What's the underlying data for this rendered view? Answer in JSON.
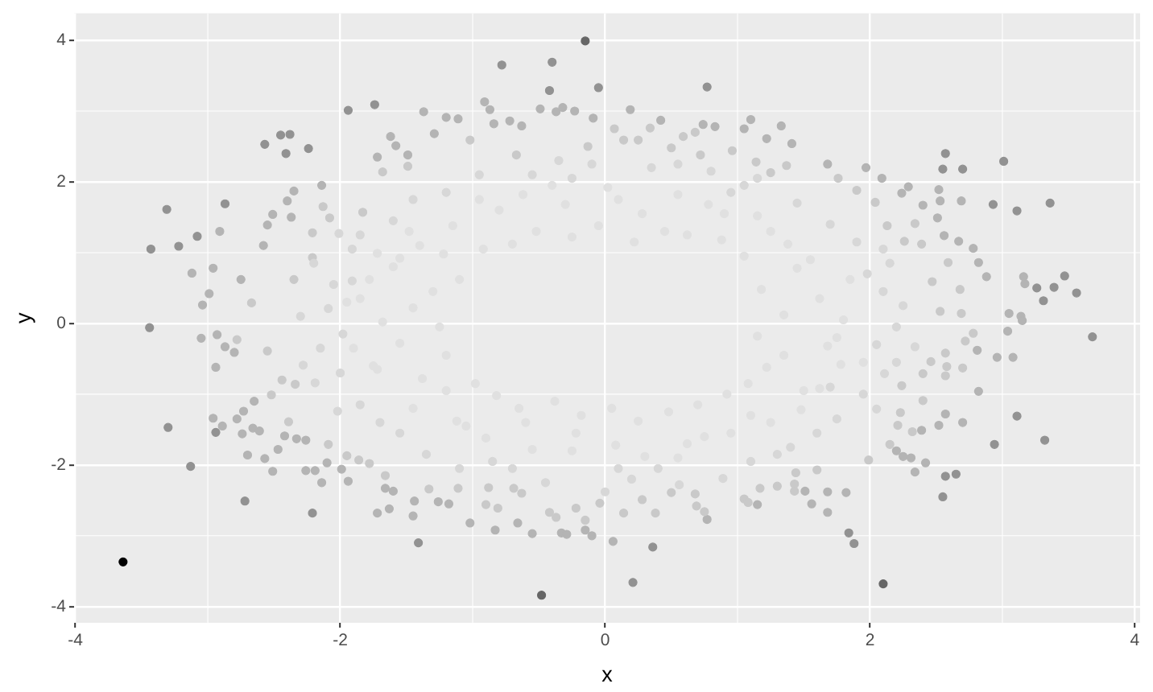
{
  "chart_data": {
    "type": "scatter",
    "xlabel": "x",
    "ylabel": "y",
    "xlim": [
      -4.01,
      4.04
    ],
    "ylim": [
      -4.23,
      4.38
    ],
    "xticks": [
      -4,
      -2,
      0,
      2,
      4
    ],
    "yticks": [
      -4,
      -2,
      0,
      2,
      4
    ],
    "grid": true,
    "marker": "circle",
    "series": [
      {
        "color": "#e0e0e0",
        "x": [
          -1.72,
          -1.4,
          -0.8,
          0.1,
          0.9,
          1.55,
          1.8,
          1.5,
          0.75,
          -0.25,
          -1.05,
          -1.75,
          -1.85,
          -1.2,
          1.25,
          -0.4,
          0.55,
          1.95,
          -1.6,
          1.1,
          -0.6,
          1.35,
          1.75,
          1.62,
          1.18,
          1.85,
          1.45,
          1.05,
          1.38,
          0.88,
          1.15,
          0.62,
          0.78,
          0.45,
          0.55,
          0.22,
          0.28,
          -0.05,
          0.02,
          -0.25,
          -0.3,
          -0.52,
          -0.62,
          -0.7,
          -0.95,
          -0.92,
          -1.15,
          -1.22,
          -1.48,
          -1.1,
          -1.55,
          -1.3,
          -1.78,
          -1.45,
          -1.95,
          -1.25,
          -1.68,
          -1.55,
          -1.9,
          -1.2,
          -1.72,
          -1.38,
          -0.98,
          -1.45,
          -0.82,
          -1.12,
          -0.65,
          -0.9,
          -0.38,
          -0.55,
          -0.18,
          -0.22,
          0.05,
          0.08,
          0.25,
          0.3,
          0.48,
          0.62,
          0.7,
          0.95,
          0.92,
          1.25,
          1.08,
          1.48,
          1.22,
          1.62,
          1.35,
          1.78,
          1.15,
          1.68
        ],
        "values": [
          0.99,
          1.1,
          1.6,
          1.75,
          1.55,
          0.9,
          0.05,
          -0.95,
          -1.6,
          -1.8,
          -1.45,
          -0.6,
          0.35,
          -0.95,
          1.3,
          1.95,
          -1.9,
          -0.55,
          0.8,
          -1.3,
          -1.4,
          0.12,
          -0.2,
          0.35,
          0.48,
          0.62,
          0.78,
          0.95,
          1.12,
          1.18,
          1.52,
          1.25,
          1.68,
          1.3,
          1.82,
          1.15,
          1.55,
          1.38,
          1.92,
          1.22,
          1.68,
          1.3,
          1.82,
          1.12,
          1.75,
          1.05,
          1.38,
          0.98,
          1.3,
          0.62,
          0.92,
          0.45,
          0.62,
          0.22,
          0.3,
          -0.05,
          0.02,
          -0.28,
          -0.35,
          -0.45,
          -0.65,
          -0.78,
          -0.85,
          -1.2,
          -1.02,
          -1.38,
          -1.2,
          -1.62,
          -1.1,
          -1.78,
          -1.3,
          -1.55,
          -1.2,
          -1.72,
          -1.38,
          -1.88,
          -1.25,
          -1.7,
          -1.15,
          -1.55,
          -1.0,
          -1.4,
          -0.85,
          -1.22,
          -0.62,
          -0.92,
          -0.45,
          -0.58,
          -0.18,
          -0.32
        ]
      },
      {
        "color": "#d7d7d7",
        "x": [
          -2.01,
          -1.91,
          -2.09,
          -1.91,
          -2.28,
          -2.19,
          -2.02,
          0.0,
          0.56,
          0.89,
          2.34,
          2.05,
          2.11,
          -1.2,
          -0.55,
          0.35,
          1.05,
          1.7,
          2.1,
          2.05,
          1.75,
          1.1,
          0.2,
          -0.7,
          -1.55,
          -2.15,
          -2.05,
          -1.6,
          0.8,
          -0.1,
          1.4,
          -1.1,
          2.2,
          2.25,
          2.15,
          1.9,
          1.45,
          1.15,
          0.55,
          -0.25,
          -0.95,
          -1.45,
          -1.85,
          -2.2,
          -2.3,
          -2.0,
          -1.85,
          -1.35,
          -0.45,
          0.4,
          1.3,
          1.6,
          1.95,
          2.2,
          1.98,
          -0.85,
          -1.7,
          1.7,
          0.1,
          -0.35,
          0.95,
          -1.98,
          2.1
        ],
        "values": [
          1.27,
          1.05,
          0.21,
          0.6,
          -0.59,
          -0.84,
          -1.24,
          -2.38,
          -2.28,
          -2.19,
          -0.33,
          -1.21,
          -0.71,
          1.85,
          2.1,
          2.2,
          1.95,
          1.4,
          0.45,
          -0.3,
          -1.35,
          -1.95,
          -2.2,
          -2.05,
          -1.55,
          -0.35,
          0.55,
          1.45,
          2.15,
          2.25,
          -1.75,
          -2.05,
          -0.05,
          0.25,
          0.85,
          1.15,
          1.7,
          2.05,
          2.25,
          2.05,
          2.1,
          1.75,
          1.25,
          0.85,
          0.1,
          -0.7,
          -1.15,
          -1.85,
          -2.25,
          -2.05,
          -1.85,
          -1.55,
          -1.0,
          -0.55,
          0.7,
          -1.95,
          -1.4,
          -0.9,
          -2.05,
          2.3,
          1.85,
          -0.15,
          1.05
        ]
      },
      {
        "color": "#c9c9c9",
        "x": [
          -2.67,
          -1.68,
          -2.13,
          -2.08,
          -1.83,
          -2.21,
          -2.35,
          -2.21,
          0.07,
          -1.49,
          -1.02,
          -0.67,
          -0.13,
          0.14,
          0.25,
          0.34,
          0.59,
          0.68,
          0.5,
          0.72,
          0.96,
          1.14,
          1.25,
          1.37,
          2.59,
          2.47,
          2.68,
          2.53,
          2.69,
          2.13,
          2.34,
          2.26,
          2.39,
          1.76,
          1.9,
          2.04,
          -2.78,
          -2.09,
          -1.66,
          -2.55,
          -2.44,
          -2.39,
          -2.52,
          -2.34,
          -1.95,
          -1.86,
          -1.78,
          -0.15,
          -0.42,
          -0.37,
          0.14,
          0.38,
          0.75,
          0.69,
          0.68,
          1.05,
          1.08,
          1.3,
          -1.33,
          -1.11,
          -0.9,
          -0.81,
          -0.88,
          -0.69,
          -0.63,
          -0.22,
          -0.04,
          0.28,
          0.5,
          1.17,
          2.78,
          2.72,
          2.7,
          2.57,
          2.58,
          2.46,
          2.57,
          2.4,
          2.32,
          2.21,
          2.15,
          1.99,
          1.43,
          1.43,
          1.6,
          1.44,
          2.23,
          2.24,
          2.4
        ],
        "values": [
          0.29,
          2.14,
          1.65,
          1.49,
          1.57,
          1.28,
          0.62,
          0.93,
          2.75,
          2.22,
          2.59,
          2.38,
          2.5,
          2.59,
          2.59,
          2.76,
          2.64,
          2.7,
          2.48,
          2.38,
          2.44,
          2.28,
          2.13,
          2.23,
          0.86,
          0.59,
          0.48,
          0.17,
          0.14,
          1.38,
          1.41,
          1.16,
          1.12,
          2.05,
          1.88,
          1.71,
          -0.23,
          -1.71,
          -2.15,
          -0.39,
          -0.8,
          -1.39,
          -1.01,
          -0.86,
          -1.87,
          -1.93,
          -1.98,
          -2.78,
          -2.67,
          -2.74,
          -2.68,
          -2.68,
          -2.66,
          -2.58,
          -2.41,
          -2.48,
          -2.53,
          -2.3,
          -2.34,
          -2.33,
          -2.56,
          -2.61,
          -2.32,
          -2.33,
          -2.4,
          -2.61,
          -2.54,
          -2.49,
          -2.39,
          -2.33,
          -0.14,
          -0.25,
          -0.63,
          -0.74,
          -0.61,
          -0.54,
          -0.42,
          -1.09,
          -1.53,
          -1.44,
          -1.71,
          -1.93,
          -2.37,
          -2.27,
          -2.07,
          -2.11,
          -1.26,
          -0.88,
          -0.71
        ]
      },
      {
        "color": "#b4b4b4",
        "x": [
          -2.91,
          -3.12,
          -2.96,
          -2.99,
          -2.75,
          -2.35,
          -2.4,
          -2.37,
          -2.51,
          -2.55,
          -2.58,
          -3.04,
          -2.14,
          -1.62,
          -1.72,
          -1.37,
          -0.91,
          -0.87,
          -0.63,
          -0.37,
          -0.32,
          -0.23,
          0.19,
          0.42,
          0.74,
          1.05,
          1.1,
          1.33,
          1.22,
          -1.2,
          -1.11,
          -0.09,
          -1.29,
          -1.58,
          -1.49,
          -0.84,
          -0.72,
          -0.49,
          0.83,
          2.69,
          2.53,
          2.4,
          3.17,
          3.16,
          2.88,
          3.05,
          3.14,
          1.41,
          1.97,
          2.09,
          2.24,
          2.29,
          2.52,
          2.51,
          2.78,
          2.67,
          2.56,
          2.82,
          1.68,
          -2.96,
          -2.89,
          -3.05,
          -2.93,
          -2.94,
          -2.87,
          -2.8,
          -2.78,
          -2.74,
          -2.73,
          -2.7,
          -2.66,
          -2.61,
          -2.65,
          -2.57,
          -2.51,
          -2.47,
          -2.42,
          -2.33,
          -2.26,
          -2.26,
          -2.19,
          -2.14,
          -2.1,
          -1.99,
          -1.94,
          -1.72,
          -1.63,
          -1.6,
          -1.66,
          -1.45,
          -1.02,
          -0.83,
          -0.66,
          -0.55,
          -0.33,
          -0.29,
          -0.15,
          -0.1,
          0.06,
          0.77,
          1.15,
          -1.44,
          -1.26,
          -1.18,
          1.68,
          2.34,
          2.42,
          2.7,
          2.52,
          2.57,
          2.82,
          2.96,
          3.08,
          3.04,
          3.15,
          2.81,
          2.39,
          2.25,
          2.31,
          2.2,
          1.82,
          1.68,
          1.56,
          1.51
        ],
        "values": [
          1.3,
          0.71,
          0.78,
          0.42,
          0.62,
          1.87,
          1.73,
          1.5,
          1.54,
          1.39,
          1.1,
          0.26,
          1.95,
          2.64,
          2.35,
          2.99,
          3.13,
          3.02,
          2.79,
          2.99,
          3.05,
          3.0,
          3.02,
          2.87,
          2.81,
          2.75,
          2.88,
          2.79,
          2.61,
          2.91,
          2.89,
          2.9,
          2.68,
          2.51,
          2.38,
          2.82,
          2.86,
          3.03,
          2.78,
          1.73,
          1.73,
          1.67,
          0.56,
          0.66,
          0.66,
          0.14,
          0.1,
          2.54,
          2.2,
          2.05,
          1.84,
          1.93,
          1.89,
          1.49,
          1.06,
          1.16,
          1.24,
          0.86,
          2.25,
          -1.34,
          -1.45,
          -0.21,
          -0.16,
          -0.62,
          -0.33,
          -0.41,
          -1.35,
          -1.56,
          -1.24,
          -1.86,
          -1.48,
          -1.52,
          -1.1,
          -1.91,
          -2.09,
          -1.78,
          -1.59,
          -1.63,
          -1.65,
          -2.08,
          -2.08,
          -2.25,
          -1.97,
          -2.06,
          -2.23,
          -2.68,
          -2.62,
          -2.37,
          -2.33,
          -2.72,
          -2.82,
          -2.92,
          -2.82,
          -2.97,
          -2.96,
          -2.98,
          -2.92,
          -3.0,
          -3.08,
          -2.77,
          -2.56,
          -2.51,
          -2.52,
          -2.55,
          -2.67,
          -2.1,
          -1.97,
          -1.4,
          -1.44,
          -1.28,
          -0.96,
          -0.48,
          -0.48,
          -0.11,
          0.04,
          -0.38,
          -1.51,
          -1.88,
          -1.9,
          -1.8,
          -2.39,
          -2.38,
          -2.55,
          -2.37
        ]
      },
      {
        "color": "#929292",
        "x": [
          -1.94,
          -1.74,
          -2.57,
          -2.45,
          -2.38,
          -2.41,
          -2.24,
          -3.31,
          -3.43,
          -3.22,
          -2.87,
          -3.08,
          -3.44,
          -0.78,
          -0.4,
          -0.42,
          -0.05,
          0.77,
          3.01,
          2.57,
          2.55,
          2.7,
          3.36,
          2.93,
          3.11,
          3.47,
          3.56,
          3.39,
          3.31,
          3.26,
          3.68,
          -3.3,
          -3.13,
          -2.72,
          -2.21,
          -2.94,
          0.21,
          0.36,
          -1.41,
          1.88,
          1.84,
          2.55,
          2.57,
          2.65,
          2.94,
          3.32,
          3.11
        ],
        "values": [
          3.01,
          3.09,
          2.53,
          2.66,
          2.67,
          2.4,
          2.47,
          1.61,
          1.05,
          1.09,
          1.69,
          1.23,
          -0.06,
          3.65,
          3.69,
          3.29,
          3.33,
          3.34,
          2.29,
          2.4,
          2.18,
          2.18,
          1.7,
          1.68,
          1.59,
          0.67,
          0.43,
          0.51,
          0.32,
          0.5,
          -0.19,
          -1.47,
          -2.02,
          -2.51,
          -2.68,
          -1.54,
          -3.66,
          -3.16,
          -3.1,
          -3.11,
          -2.96,
          -2.45,
          -2.16,
          -2.13,
          -1.71,
          -1.65,
          -1.31
        ]
      },
      {
        "color": "#666666",
        "x": [
          -0.15,
          -0.48,
          2.1
        ],
        "values": [
          3.99,
          -3.84,
          -3.68
        ]
      },
      {
        "color": "#000000",
        "x": [
          -3.64
        ],
        "values": [
          -3.37
        ]
      }
    ]
  }
}
